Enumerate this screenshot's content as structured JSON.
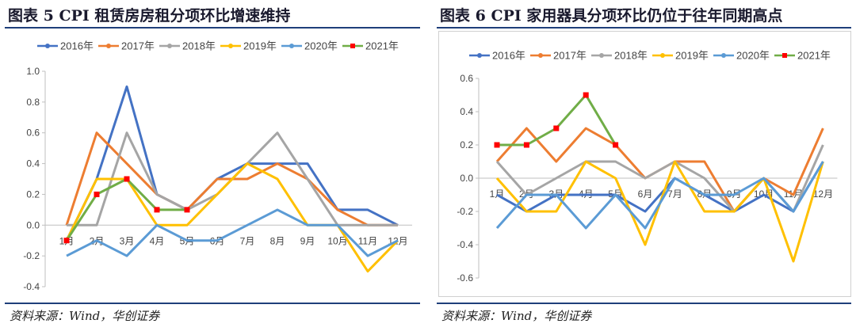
{
  "panels": [
    {
      "title": "图表 5   CPI 租赁房房租分项环比增速维持",
      "source": "资料来源：Wind，华创证券"
    },
    {
      "title": "图表 6   CPI 家用器具分项环比仍位于往年同期高点",
      "source": "资料来源：Wind，华创证券"
    }
  ],
  "chart_data": [
    {
      "type": "line",
      "title": "",
      "xlabel": "",
      "ylabel": "",
      "categories": [
        "1月",
        "2月",
        "3月",
        "4月",
        "5月",
        "6月",
        "7月",
        "8月",
        "9月",
        "10月",
        "11月",
        "12月"
      ],
      "ylim": [
        -0.4,
        1.0
      ],
      "yticks": [
        "1.0",
        "0.8",
        "0.6",
        "0.4",
        "0.2",
        "0.0",
        "-0.2",
        "-0.4"
      ],
      "ytick_values": [
        1.0,
        0.8,
        0.6,
        0.4,
        0.2,
        0.0,
        -0.2,
        -0.4
      ],
      "grid": false,
      "legend_position": "top",
      "series": [
        {
          "name": "2016年",
          "color": "#4472c4",
          "marker": "none",
          "values": [
            -0.1,
            0.3,
            0.9,
            0.2,
            0.1,
            0.3,
            0.4,
            0.4,
            0.4,
            0.1,
            0.1,
            0.0
          ]
        },
        {
          "name": "2017年",
          "color": "#ed7d31",
          "marker": "none",
          "values": [
            0.0,
            0.6,
            0.4,
            0.2,
            0.1,
            0.3,
            0.3,
            0.4,
            0.3,
            0.1,
            0.0,
            0.0
          ]
        },
        {
          "name": "2018年",
          "color": "#a5a5a5",
          "marker": "none",
          "values": [
            0.0,
            0.0,
            0.6,
            0.2,
            0.1,
            0.2,
            0.4,
            0.6,
            0.3,
            0.0,
            0.0,
            0.0
          ]
        },
        {
          "name": "2019年",
          "color": "#ffc000",
          "marker": "none",
          "values": [
            -0.1,
            0.3,
            0.3,
            0.0,
            0.0,
            0.2,
            0.4,
            0.3,
            0.0,
            0.0,
            -0.3,
            -0.1
          ]
        },
        {
          "name": "2020年",
          "color": "#5b9bd5",
          "marker": "none",
          "values": [
            -0.2,
            -0.1,
            -0.2,
            0.0,
            -0.1,
            -0.1,
            0.0,
            0.1,
            0.0,
            0.0,
            -0.2,
            -0.1
          ]
        },
        {
          "name": "2021年",
          "color": "#70ad47",
          "marker": "square",
          "marker_color": "#ff0000",
          "values": [
            -0.1,
            0.2,
            0.3,
            0.1,
            0.1,
            null,
            null,
            null,
            null,
            null,
            null,
            null
          ]
        }
      ]
    },
    {
      "type": "line",
      "title": "",
      "xlabel": "",
      "ylabel": "",
      "categories": [
        "1月",
        "2月",
        "3月",
        "4月",
        "5月",
        "6月",
        "7月",
        "8月",
        "9月",
        "10月",
        "11月",
        "12月"
      ],
      "ylim": [
        -0.6,
        0.6
      ],
      "yticks": [
        "0.6",
        "0.4",
        "0.2",
        "0.0",
        "-0.2",
        "-0.4",
        "-0.6"
      ],
      "ytick_values": [
        0.6,
        0.4,
        0.2,
        0.0,
        -0.2,
        -0.4,
        -0.6
      ],
      "grid": false,
      "legend_position": "top",
      "series": [
        {
          "name": "2016年",
          "color": "#4472c4",
          "marker": "none",
          "values": [
            -0.1,
            -0.2,
            -0.1,
            -0.1,
            -0.1,
            -0.2,
            0.0,
            -0.1,
            -0.2,
            -0.1,
            -0.2,
            0.1
          ]
        },
        {
          "name": "2017年",
          "color": "#ed7d31",
          "marker": "none",
          "values": [
            0.1,
            0.3,
            0.1,
            0.3,
            0.2,
            0.0,
            0.1,
            0.1,
            -0.2,
            0.0,
            -0.1,
            0.3
          ]
        },
        {
          "name": "2018年",
          "color": "#a5a5a5",
          "marker": "none",
          "values": [
            0.1,
            -0.1,
            0.0,
            0.1,
            0.1,
            0.0,
            0.1,
            0.0,
            -0.2,
            0.0,
            -0.2,
            0.2
          ]
        },
        {
          "name": "2019年",
          "color": "#ffc000",
          "marker": "none",
          "values": [
            0.0,
            -0.2,
            -0.2,
            0.1,
            0.0,
            -0.4,
            0.1,
            -0.2,
            -0.2,
            0.0,
            -0.5,
            0.1
          ]
        },
        {
          "name": "2020年",
          "color": "#5b9bd5",
          "marker": "none",
          "values": [
            -0.3,
            -0.1,
            -0.1,
            -0.3,
            -0.1,
            -0.3,
            0.0,
            -0.1,
            -0.1,
            0.0,
            -0.2,
            0.1
          ]
        },
        {
          "name": "2021年",
          "color": "#70ad47",
          "marker": "square",
          "marker_color": "#ff0000",
          "values": [
            0.2,
            0.2,
            0.3,
            0.5,
            0.2,
            null,
            null,
            null,
            null,
            null,
            null,
            null
          ]
        }
      ]
    }
  ]
}
